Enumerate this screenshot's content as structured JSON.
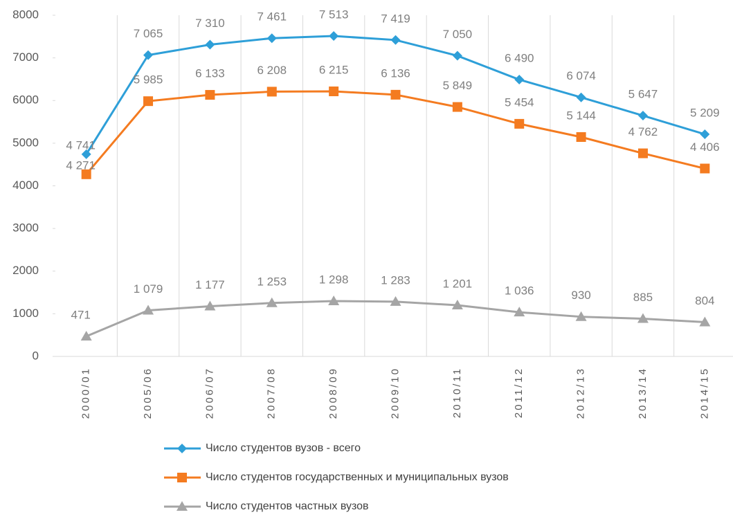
{
  "chart_data": {
    "type": "line",
    "categories": [
      "2000/01",
      "2005/06",
      "2006/07",
      "2007/08",
      "2008/09",
      "2009/10",
      "2010/11",
      "2011/12",
      "2012/13",
      "2013/14",
      "2014/15"
    ],
    "series": [
      {
        "name": "Число студентов вузов - всего",
        "color": "#2e9fd8",
        "marker": "diamond",
        "values": [
          4741,
          7065,
          7310,
          7461,
          7513,
          7419,
          7050,
          6490,
          6074,
          5647,
          5209
        ],
        "value_labels": [
          "4 741",
          "7 065",
          "7 310",
          "7 461",
          "7 513",
          "7 419",
          "7 050",
          "6 490",
          "6 074",
          "5 647",
          "5 209"
        ]
      },
      {
        "name": "Число студентов государственных и муниципальных  вузов",
        "color": "#f47b20",
        "marker": "square",
        "values": [
          4271,
          5985,
          6133,
          6208,
          6215,
          6136,
          5849,
          5454,
          5144,
          4762,
          4406
        ],
        "value_labels": [
          "4 271",
          "5 985",
          "6 133",
          "6 208",
          "6 215",
          "6 136",
          "5 849",
          "5 454",
          "5 144",
          "4 762",
          "4 406"
        ]
      },
      {
        "name": "Число студентов частных вузов",
        "color": "#a5a5a5",
        "marker": "triangle",
        "values": [
          471,
          1079,
          1177,
          1253,
          1298,
          1283,
          1201,
          1036,
          930,
          885,
          804
        ],
        "value_labels": [
          "471",
          "1 079",
          "1 177",
          "1 253",
          "1 298",
          "1 283",
          "1 201",
          "1 036",
          "930",
          "885",
          "804"
        ]
      }
    ],
    "ylim": [
      0,
      8000
    ],
    "yticks": [
      0,
      1000,
      2000,
      3000,
      4000,
      5000,
      6000,
      7000,
      8000
    ],
    "grid": true,
    "legend": "bottom"
  }
}
